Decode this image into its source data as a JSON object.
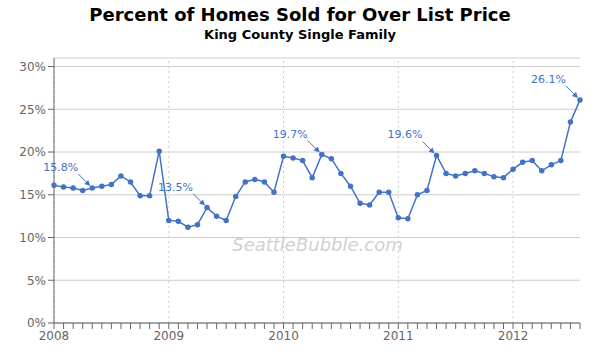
{
  "chart_data": {
    "type": "line",
    "title": "Percent of Homes Sold for Over List Price",
    "subtitle": "King County Single Family",
    "watermark": "SeattleBubble.com",
    "color": "#4472C4",
    "grid": true,
    "marker": "circle",
    "line_style": "solid",
    "categories": [
      "2008",
      null,
      null,
      null,
      null,
      null,
      null,
      null,
      null,
      null,
      null,
      null,
      "2009",
      null,
      null,
      null,
      null,
      null,
      null,
      null,
      null,
      null,
      null,
      null,
      "2010",
      null,
      null,
      null,
      null,
      null,
      null,
      null,
      null,
      null,
      null,
      null,
      "2011",
      null,
      null,
      null,
      null,
      null,
      null,
      null,
      null,
      null,
      null,
      null,
      "2012",
      null,
      null,
      null,
      null,
      null,
      null,
      null
    ],
    "values": [
      0.161,
      0.159,
      0.158,
      0.155,
      0.158,
      0.16,
      0.162,
      0.172,
      0.165,
      0.149,
      0.149,
      0.201,
      0.12,
      0.119,
      0.112,
      0.115,
      0.135,
      0.125,
      0.12,
      0.148,
      0.165,
      0.168,
      0.165,
      0.153,
      0.195,
      0.193,
      0.19,
      0.17,
      0.197,
      0.192,
      0.175,
      0.16,
      0.14,
      0.138,
      0.153,
      0.153,
      0.123,
      0.122,
      0.15,
      0.155,
      0.196,
      0.175,
      0.172,
      0.175,
      0.178,
      0.175,
      0.171,
      0.17,
      0.18,
      0.188,
      0.19,
      0.178,
      0.185,
      0.19,
      0.235,
      0.261
    ],
    "ylim": [
      0,
      0.31
    ],
    "yticks": [
      {
        "value": 0,
        "label": "0%"
      },
      {
        "value": 0.05,
        "label": "5%"
      },
      {
        "value": 0.1,
        "label": "10%"
      },
      {
        "value": 0.15,
        "label": "15%"
      },
      {
        "value": 0.2,
        "label": "20%"
      },
      {
        "value": 0.25,
        "label": "25%"
      },
      {
        "value": 0.3,
        "label": "30%"
      }
    ],
    "annotations": [
      {
        "label": "15.8%",
        "x": 4,
        "y": 0.158
      },
      {
        "label": "13.5%",
        "x": 16,
        "y": 0.135
      },
      {
        "label": "19.7%",
        "x": 28,
        "y": 0.197
      },
      {
        "label": "19.6%",
        "x": 40,
        "y": 0.196
      },
      {
        "label": "26.1%",
        "x": 55,
        "y": 0.261
      }
    ]
  }
}
